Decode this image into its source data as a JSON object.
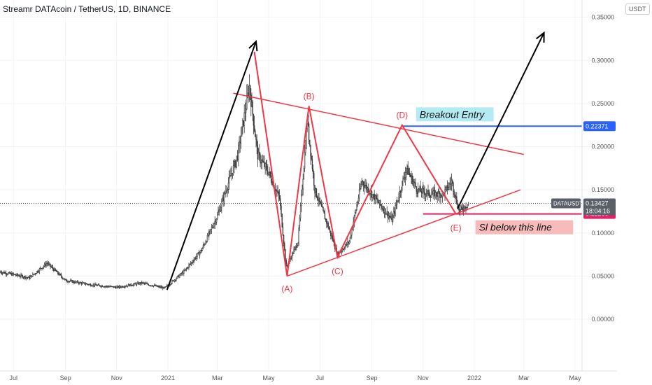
{
  "title": "Streamr DATAcoin / TetherUS, 1D, BINANCE",
  "currency_button": "USDT",
  "colors": {
    "candles": "#3b3b3b",
    "pattern": "#f23645",
    "arrow": "#000000",
    "entry_line": "#2962ff",
    "stop_line": "#e91e63",
    "entry_badge_bg": "#b2ebf2",
    "stop_badge_bg": "#f8bbbb",
    "price_badge": "#5b5f68"
  },
  "chart_data": {
    "type": "candlestick",
    "symbol": "DATAUSDT",
    "y_axis_ticks": [
      "0.35000",
      "0.30000",
      "0.25000",
      "0.20000",
      "0.15000",
      "0.10000",
      "0.05000",
      "0.00000"
    ],
    "y_tick_values": [
      0.35,
      0.3,
      0.25,
      0.2,
      0.15,
      0.1,
      0.05,
      0.0
    ],
    "x_axis_ticks": [
      "Jul",
      "Sep",
      "Nov",
      "2021",
      "Mar",
      "May",
      "Jul",
      "Sep",
      "Nov",
      "2022",
      "Mar",
      "May"
    ],
    "x_tick_dates": [
      "2020-07-01",
      "2020-09-01",
      "2020-11-01",
      "2021-01-01",
      "2021-03-01",
      "2021-05-01",
      "2021-07-01",
      "2021-09-01",
      "2021-11-01",
      "2022-01-01",
      "2022-03-01",
      "2022-05-01"
    ],
    "ylim": [
      -0.06,
      0.37
    ],
    "x_range": [
      "2020-06-15",
      "2022-06-20"
    ],
    "price_path": [
      [
        "2020-06-15",
        0.055
      ],
      [
        "2020-07-20",
        0.048
      ],
      [
        "2020-08-10",
        0.065
      ],
      [
        "2020-09-01",
        0.045
      ],
      [
        "2020-10-01",
        0.04
      ],
      [
        "2020-11-01",
        0.037
      ],
      [
        "2020-12-01",
        0.042
      ],
      [
        "2020-12-28",
        0.036
      ],
      [
        "2021-01-20",
        0.055
      ],
      [
        "2021-02-10",
        0.08
      ],
      [
        "2021-03-01",
        0.12
      ],
      [
        "2021-03-25",
        0.19
      ],
      [
        "2021-04-08",
        0.27
      ],
      [
        "2021-04-18",
        0.19
      ],
      [
        "2021-05-01",
        0.17
      ],
      [
        "2021-05-14",
        0.14
      ],
      [
        "2021-05-22",
        0.06
      ],
      [
        "2021-06-05",
        0.09
      ],
      [
        "2021-06-16",
        0.23
      ],
      [
        "2021-06-25",
        0.15
      ],
      [
        "2021-07-10",
        0.11
      ],
      [
        "2021-07-22",
        0.075
      ],
      [
        "2021-08-05",
        0.09
      ],
      [
        "2021-08-20",
        0.16
      ],
      [
        "2021-09-05",
        0.14
      ],
      [
        "2021-09-25",
        0.115
      ],
      [
        "2021-10-12",
        0.175
      ],
      [
        "2021-10-25",
        0.15
      ],
      [
        "2021-11-10",
        0.145
      ],
      [
        "2021-11-25",
        0.145
      ],
      [
        "2021-12-05",
        0.16
      ],
      [
        "2021-12-14",
        0.125
      ],
      [
        "2021-12-25",
        0.13427
      ]
    ],
    "pattern_points": [
      {
        "label": "(A)",
        "date": "2021-05-23",
        "value": 0.05
      },
      {
        "label": "(B)",
        "date": "2021-06-18",
        "value": 0.247
      },
      {
        "label": "(C)",
        "date": "2021-07-22",
        "value": 0.072
      },
      {
        "label": "(D)",
        "date": "2021-10-07",
        "value": 0.225
      },
      {
        "label": "(E)",
        "date": "2021-12-10",
        "value": 0.122
      }
    ],
    "wave_start": {
      "date": "2021-04-14",
      "value": 0.31
    },
    "upper_trendline": [
      [
        "2021-03-20",
        0.262
      ],
      [
        "2022-03-01",
        0.191
      ]
    ],
    "lower_trendline": [
      [
        "2021-05-23",
        0.05
      ],
      [
        "2022-02-25",
        0.15
      ]
    ],
    "impulse_arrow": [
      [
        "2020-12-31",
        0.034
      ],
      [
        "2021-04-16",
        0.322
      ]
    ],
    "breakout_arrow": [
      [
        "2021-12-12",
        0.128
      ],
      [
        "2022-03-25",
        0.332
      ]
    ],
    "entry_level": {
      "value": 0.22371,
      "label": "0.22371",
      "text": "Breakout Entry"
    },
    "stop_level": {
      "value": 0.122,
      "label": "0.12200",
      "text": "Sl below this line"
    },
    "last_price": {
      "symbol": "DATAUSDT",
      "value": "0.13427",
      "countdown": "18:04:16"
    }
  }
}
